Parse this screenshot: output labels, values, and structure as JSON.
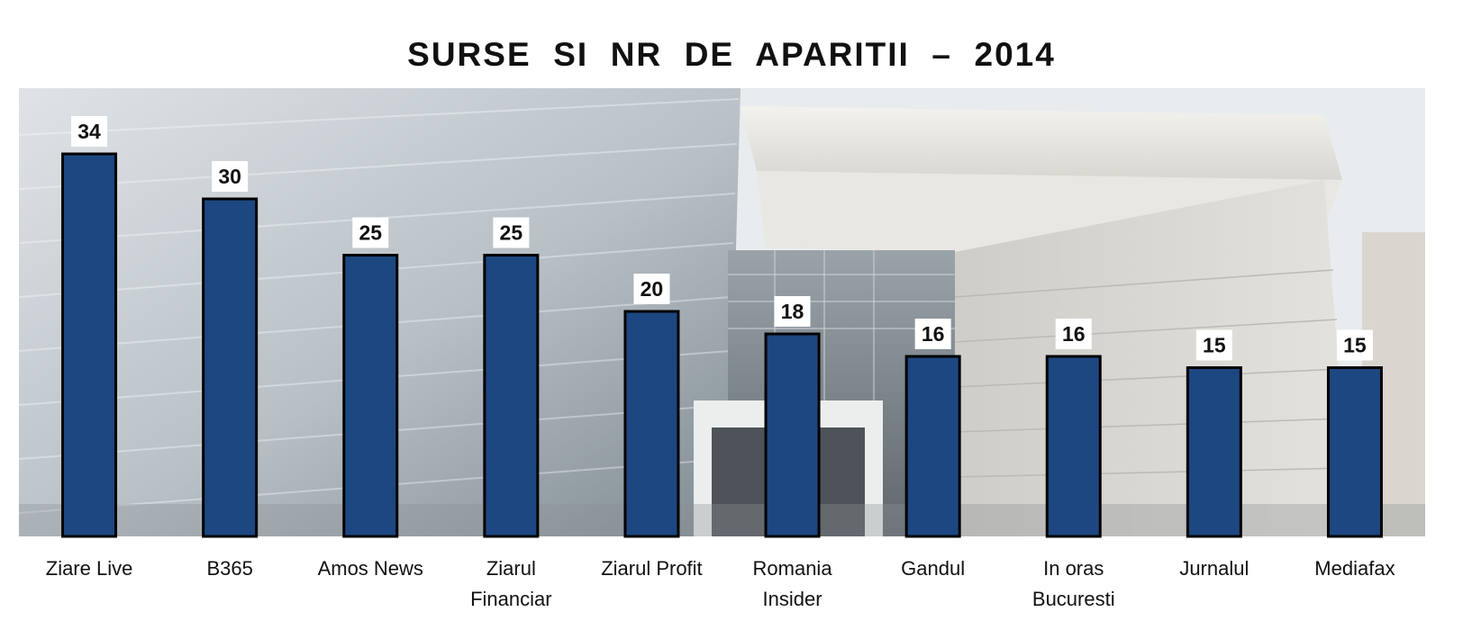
{
  "chart_data": {
    "type": "bar",
    "title": "SURSE  SI  NR  DE  APARITII  –  2014",
    "xlabel": "",
    "ylabel": "",
    "categories": [
      "Ziare Live",
      "B365",
      "Amos News",
      "Ziarul Financiar",
      "Ziarul Profit",
      "Romania Insider",
      "Gandul",
      "In oras Bucuresti",
      "Jurnalul",
      "Mediafax"
    ],
    "category_lines": [
      [
        "Ziare Live"
      ],
      [
        "B365"
      ],
      [
        "Amos News"
      ],
      [
        "Ziarul",
        "Financiar"
      ],
      [
        "Ziarul Profit"
      ],
      [
        "Romania",
        "Insider"
      ],
      [
        "Gandul"
      ],
      [
        "In oras",
        "Bucuresti"
      ],
      [
        "Jurnalul"
      ],
      [
        "Mediafax"
      ]
    ],
    "values": [
      34,
      30,
      25,
      25,
      20,
      18,
      16,
      16,
      15,
      15
    ],
    "ylim": [
      0,
      40
    ],
    "grid": false,
    "legend": "none",
    "show_values": true
  },
  "colors": {
    "bar_fill": "#1d4781",
    "bar_stroke": "#000000",
    "label_box": "#ffffff",
    "text": "#111111"
  }
}
